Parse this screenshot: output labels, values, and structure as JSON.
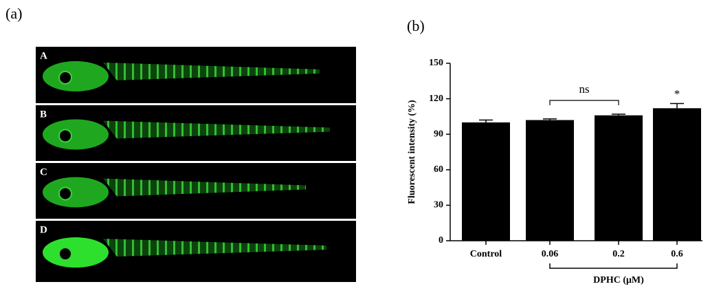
{
  "panel_a": {
    "label": "(a)",
    "images": [
      {
        "label": "A"
      },
      {
        "label": "B"
      },
      {
        "label": "C"
      },
      {
        "label": "D"
      }
    ]
  },
  "panel_b": {
    "label": "(b)"
  },
  "chart_data": {
    "type": "bar",
    "y_label": "Fluorescent intensity (%)",
    "x_label": "DPHC (μM)",
    "categories": [
      "Control",
      "0.06",
      "0.2",
      "0.6"
    ],
    "values": [
      100,
      102,
      106,
      112
    ],
    "errors": [
      2,
      1,
      1,
      4
    ],
    "color": "#000000",
    "ylim": [
      0,
      150
    ],
    "yticks": [
      0,
      30,
      60,
      90,
      120,
      150
    ],
    "annotations": [
      "ns",
      "*"
    ]
  }
}
